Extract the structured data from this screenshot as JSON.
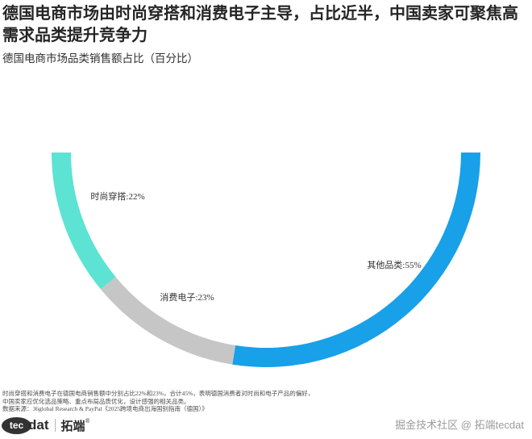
{
  "title": {
    "line1": "德国电商市场由时尚穿搭和消费电子主导，占比近半，中国卖家可聚焦高",
    "line2": "需求品类提升竞争力"
  },
  "subtitle": "德国电商市场品类销售额占比（百分比）",
  "chart_data": {
    "type": "pie",
    "subtype": "half-donut",
    "title": "德国电商市场品类销售额占比（百分比）",
    "categories": [
      "时尚穿搭",
      "消费电子",
      "其他品类"
    ],
    "values": [
      22,
      23,
      55
    ],
    "unit": "%",
    "colors": [
      "#5ce3d3",
      "#c6c6c6",
      "#18a0e8"
    ],
    "slice_names": [
      "fashion-apparel",
      "consumer-electronics",
      "other-categories"
    ],
    "labels": [
      "时尚穿搭:22%",
      "消费电子:23%",
      "其他品类:55%"
    ],
    "arc_span_deg": 180,
    "legend": "none",
    "grid": false
  },
  "footnotes": [
    "时尚穿搭和消费电子在德国电商销售额中分别占比22%和23%，合计45%，表明德国消费者对时尚和电子产品的偏好，",
    "中国卖家应优化选品策略、重点布局品质优化，设计感强的相关品类。",
    "数据来源：36global Research & PayPal《2025跨境电商出海国别指南（德国）》"
  ],
  "branding": {
    "logo_tec": "tec",
    "logo_dat": "dat",
    "logo_cn": "拓端",
    "reg": "®"
  },
  "watermark": {
    "community": "掘金技术社区",
    "separator": "@",
    "account": "拓端tecdat"
  }
}
